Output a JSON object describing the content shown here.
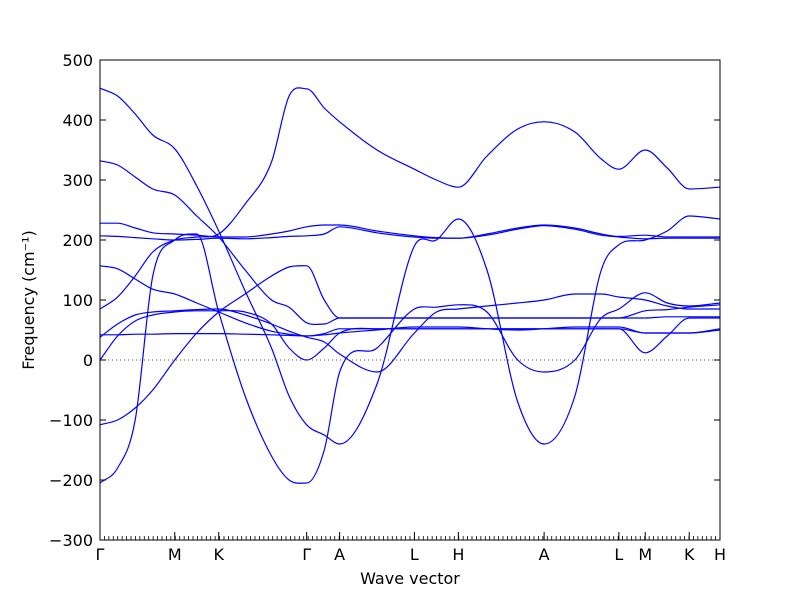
{
  "chart_data": {
    "type": "line",
    "xlabel": "Wave vector",
    "ylabel": "Frequency (cm⁻¹)",
    "ylim": [
      -300,
      500
    ],
    "yticks": [
      -300,
      -200,
      -100,
      0,
      100,
      200,
      300,
      400,
      500
    ],
    "xlim": [
      0,
      14.1
    ],
    "grid": false,
    "line_color": "#0000ff",
    "zero_line": {
      "y": 0,
      "style": "dotted"
    },
    "high_symmetry_points": [
      {
        "label": "Γ",
        "x": 0.0
      },
      {
        "label": "M",
        "x": 1.7
      },
      {
        "label": "K",
        "x": 2.7
      },
      {
        "label": "Γ",
        "x": 4.7
      },
      {
        "label": "A",
        "x": 5.45
      },
      {
        "label": "L",
        "x": 7.15
      },
      {
        "label": "H",
        "x": 8.15
      },
      {
        "label": "A",
        "x": 10.1
      },
      {
        "label": "L",
        "x": 11.8
      },
      {
        "label": "M",
        "x": 12.4
      },
      {
        "label": "K",
        "x": 13.4
      },
      {
        "label": "H",
        "x": 14.1
      }
    ],
    "series": [
      {
        "x": [
          0,
          0.4,
          0.8,
          1.2,
          1.7,
          2.2,
          2.7,
          3.3,
          3.9,
          4.3,
          4.7,
          5.1,
          5.45,
          6.3,
          7.15,
          7.65,
          8.15,
          8.8,
          9.5,
          10.1,
          10.8,
          11.4,
          11.8,
          12.4,
          12.9,
          13.4,
          14.1
        ],
        "y": [
          453,
          440,
          410,
          375,
          352,
          290,
          215,
          115,
          20,
          -60,
          -108,
          -125,
          -140,
          -40,
          190,
          200,
          235,
          150,
          -70,
          -140,
          -60,
          150,
          192,
          200,
          215,
          240,
          235
        ]
      },
      {
        "x": [
          0,
          0.4,
          0.8,
          1.2,
          1.7,
          2.2,
          2.7,
          3.3,
          3.9,
          4.3,
          4.7,
          5.1,
          5.45,
          6.3,
          7.15,
          7.65,
          8.15,
          8.8,
          9.5,
          10.1,
          10.8,
          11.4,
          11.8,
          12.4,
          12.9,
          13.4,
          14.1
        ],
        "y": [
          332,
          325,
          305,
          285,
          275,
          240,
          205,
          150,
          100,
          88,
          62,
          60,
          70,
          70,
          70,
          70,
          70,
          70,
          70,
          70,
          70,
          70,
          70,
          82,
          84,
          88,
          92
        ]
      },
      {
        "x": [
          0,
          0.4,
          0.8,
          1.2,
          1.7,
          2.2,
          2.7,
          3.3,
          3.9,
          4.3,
          4.7,
          5.1,
          5.45,
          6.3,
          7.15,
          7.65,
          8.15,
          8.8,
          9.5,
          10.1,
          10.8,
          11.4,
          11.8,
          12.4,
          12.9,
          13.4,
          14.1
        ],
        "y": [
          228,
          228,
          220,
          212,
          210,
          208,
          205,
          205,
          210,
          215,
          222,
          225,
          225,
          215,
          207,
          204,
          203,
          210,
          220,
          225,
          220,
          210,
          206,
          208,
          205,
          205,
          205
        ]
      },
      {
        "x": [
          0,
          0.4,
          0.8,
          1.2,
          1.7,
          2.2,
          2.7,
          3.3,
          3.9,
          4.3,
          4.7,
          5.1,
          5.45,
          6.3,
          7.15,
          7.65,
          8.15,
          8.8,
          9.5,
          10.1,
          10.8,
          11.4,
          11.8,
          12.4,
          12.9,
          13.4,
          14.1
        ],
        "y": [
          207,
          206,
          204,
          202,
          200,
          201,
          203,
          202,
          204,
          206,
          207,
          210,
          222,
          212,
          205,
          203,
          203,
          208,
          218,
          224,
          218,
          208,
          205,
          202,
          203,
          203,
          203
        ]
      },
      {
        "x": [
          0,
          0.4,
          0.8,
          1.2,
          1.7,
          2.2,
          2.7,
          3.3,
          3.9,
          4.3,
          4.7,
          5.1,
          5.45,
          6.3,
          7.15,
          7.65,
          8.15,
          8.8,
          9.5,
          10.1,
          10.8,
          11.4,
          11.8,
          12.4,
          12.9,
          13.4,
          14.1
        ],
        "y": [
          157,
          152,
          135,
          118,
          110,
          95,
          80,
          62,
          48,
          43,
          40,
          44,
          52,
          52,
          52,
          52,
          52,
          52,
          52,
          52,
          52,
          52,
          52,
          45,
          45,
          45,
          52
        ]
      },
      {
        "x": [
          0,
          0.4,
          0.8,
          1.2,
          1.7,
          2.2,
          2.7,
          3.3,
          3.9,
          4.3,
          4.7,
          5.1,
          5.45,
          6.3,
          7.15,
          7.65,
          8.15,
          8.8,
          9.5,
          10.1,
          10.8,
          11.4,
          11.8,
          12.4,
          12.9,
          13.4,
          14.1
        ],
        "y": [
          85,
          105,
          140,
          180,
          200,
          205,
          210,
          260,
          330,
          440,
          452,
          420,
          397,
          350,
          318,
          300,
          288,
          340,
          385,
          397,
          380,
          335,
          318,
          350,
          320,
          285,
          288
        ]
      },
      {
        "x": [
          0,
          0.4,
          0.8,
          1.2,
          1.7,
          2.2,
          2.7,
          3.3,
          3.9,
          4.3,
          4.7,
          5.1,
          5.45,
          6.3,
          7.15,
          7.65,
          8.15,
          8.8,
          9.5,
          10.1,
          10.8,
          11.4,
          11.8,
          12.4,
          12.9,
          13.4,
          14.1
        ],
        "y": [
          -108,
          -100,
          -80,
          -50,
          0,
          45,
          80,
          110,
          140,
          155,
          157,
          100,
          70,
          70,
          70,
          70,
          70,
          70,
          70,
          70,
          70,
          70,
          70,
          70,
          72,
          72,
          72
        ]
      },
      {
        "x": [
          0,
          0.4,
          0.8,
          1.2,
          1.7,
          2.2,
          2.7,
          3.3,
          3.9,
          4.3,
          4.7,
          5.1,
          5.45,
          6.3,
          7.15,
          7.65,
          8.15,
          8.8,
          9.5,
          10.1,
          10.8,
          11.4,
          11.8,
          12.4,
          12.9,
          13.4,
          14.1
        ],
        "y": [
          -205,
          -180,
          -100,
          140,
          200,
          210,
          80,
          -60,
          -160,
          -200,
          -205,
          -150,
          -20,
          20,
          85,
          88,
          92,
          80,
          0,
          -20,
          0,
          70,
          85,
          112,
          95,
          90,
          95
        ]
      },
      {
        "x": [
          0,
          0.4,
          0.8,
          1.2,
          1.7,
          2.2,
          2.7,
          3.3,
          3.9,
          4.3,
          4.7,
          5.1,
          5.45,
          6.3,
          7.15,
          7.65,
          8.15,
          8.8,
          9.5,
          10.1,
          10.8,
          11.4,
          11.8,
          12.4,
          12.9,
          13.4,
          14.1
        ],
        "y": [
          0,
          40,
          65,
          75,
          80,
          82,
          82,
          80,
          60,
          20,
          0,
          20,
          45,
          52,
          52,
          52,
          52,
          52,
          52,
          52,
          52,
          52,
          52,
          12,
          40,
          70,
          70
        ]
      },
      {
        "x": [
          0,
          0.4,
          0.8,
          1.2,
          1.7,
          2.2,
          2.7,
          3.3,
          3.9,
          4.3,
          4.7,
          5.1,
          5.45,
          6.3,
          7.15,
          7.65,
          8.15,
          8.8,
          9.5,
          10.1,
          10.8,
          11.4,
          11.8,
          12.4,
          12.9,
          13.4,
          14.1
        ],
        "y": [
          42,
          42,
          43,
          43,
          44,
          44,
          44,
          43,
          42,
          41,
          40,
          42,
          45,
          50,
          55,
          55,
          55,
          52,
          50,
          52,
          55,
          55,
          55,
          45,
          45,
          45,
          50
        ]
      },
      {
        "x": [
          0,
          0.4,
          0.8,
          1.2,
          1.7,
          2.2,
          2.7,
          3.3,
          3.9,
          4.3,
          4.7,
          5.1,
          5.45,
          6.3,
          7.15,
          7.65,
          8.15,
          8.8,
          9.5,
          10.1,
          10.8,
          11.4,
          11.8,
          12.4,
          12.9,
          13.4,
          14.1
        ],
        "y": [
          38,
          60,
          75,
          80,
          82,
          84,
          85,
          75,
          60,
          48,
          38,
          30,
          10,
          -20,
          45,
          80,
          85,
          90,
          95,
          100,
          110,
          110,
          105,
          100,
          90,
          85,
          85
        ]
      }
    ]
  }
}
